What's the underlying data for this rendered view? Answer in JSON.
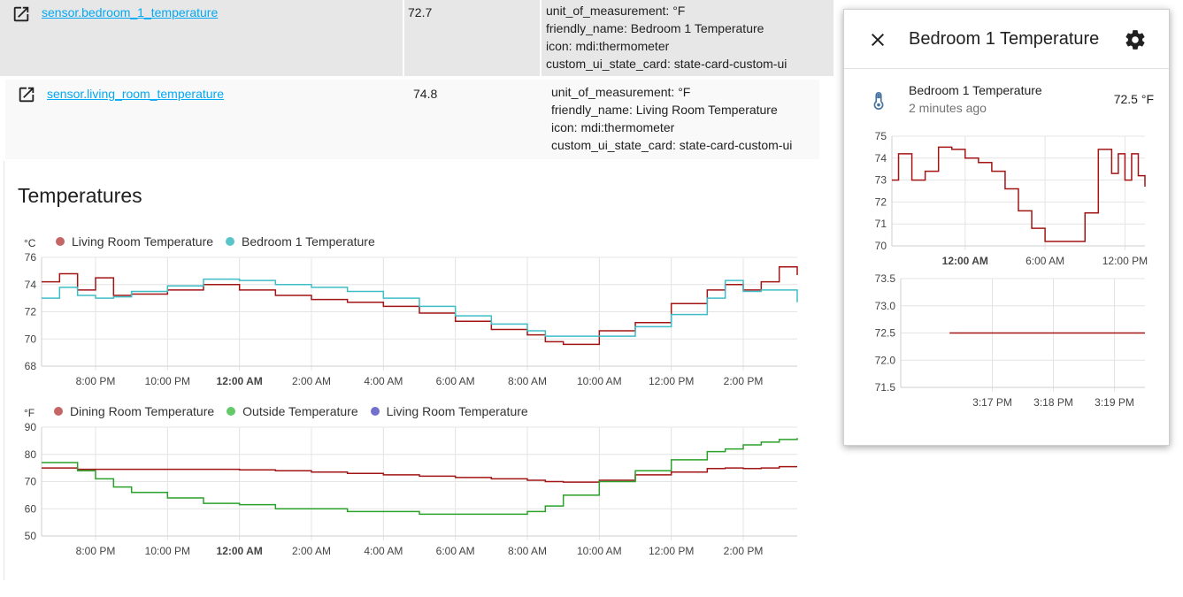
{
  "entities": [
    {
      "entity_id": "sensor.bedroom_1_temperature",
      "state": "72.7",
      "attributes": [
        "unit_of_measurement: °F",
        "friendly_name: Bedroom 1 Temperature",
        "icon: mdi:thermometer",
        "custom_ui_state_card: state-card-custom-ui"
      ]
    },
    {
      "entity_id": "sensor.living_room_temperature",
      "state": "74.8",
      "attributes": [
        "unit_of_measurement: °F",
        "friendly_name: Living Room Temperature",
        "icon: mdi:thermometer",
        "custom_ui_state_card: state-card-custom-ui"
      ]
    }
  ],
  "history_card": {
    "title": "Temperatures",
    "chart1": {
      "unit": "°C",
      "legend": [
        {
          "name": "Living Room Temperature",
          "color": "#c46666"
        },
        {
          "name": "Bedroom 1 Temperature",
          "color": "#5ac5c8"
        }
      ]
    },
    "chart2": {
      "unit": "°F",
      "legend": [
        {
          "name": "Dining Room Temperature",
          "color": "#c46666"
        },
        {
          "name": "Outside Temperature",
          "color": "#65c96a"
        },
        {
          "name": "Living Room Temperature",
          "color": "#7370cc"
        }
      ]
    }
  },
  "dialog": {
    "title": "Bedroom 1 Temperature",
    "entity_name": "Bedroom 1 Temperature",
    "last_changed": "2 minutes ago",
    "state": "72.5 °F"
  },
  "chart_data": [
    {
      "type": "line",
      "ylim": [
        68,
        76
      ],
      "yticks": [
        "76",
        "74",
        "72",
        "70",
        "68"
      ],
      "xticks": [
        "8:00 PM",
        "10:00 PM",
        "12:00 AM",
        "2:00 AM",
        "4:00 AM",
        "6:00 AM",
        "8:00 AM",
        "10:00 AM",
        "12:00 PM",
        "2:00 PM"
      ],
      "x_hours": [
        18.5,
        19,
        19.5,
        20,
        20.5,
        21,
        22,
        23,
        24,
        25,
        26,
        27,
        28,
        29,
        30,
        31,
        32,
        32.5,
        33,
        34,
        35,
        36,
        37,
        37.5,
        38,
        38.5,
        39,
        39.5
      ],
      "series": [
        {
          "name": "Living Room Temperature",
          "color": "#a31515",
          "values": [
            74.2,
            74.8,
            73.6,
            74.5,
            73.2,
            73.3,
            73.6,
            74.0,
            73.6,
            73.2,
            72.9,
            72.7,
            72.4,
            71.9,
            71.3,
            70.7,
            70.3,
            69.8,
            69.6,
            70.6,
            71.2,
            72.6,
            73.6,
            74.0,
            73.6,
            74.2,
            75.3,
            74.7
          ]
        },
        {
          "name": "Bedroom 1 Temperature",
          "color": "#3fbdc6",
          "values": [
            73.0,
            73.8,
            73.2,
            73.0,
            73.1,
            73.5,
            73.9,
            74.4,
            74.3,
            74.0,
            73.8,
            73.5,
            73.0,
            72.4,
            71.7,
            71.1,
            70.6,
            70.2,
            70.2,
            70.2,
            70.9,
            71.8,
            73.0,
            74.3,
            73.5,
            73.6,
            73.6,
            72.7
          ]
        }
      ]
    },
    {
      "type": "line",
      "ylim": [
        50,
        90
      ],
      "yticks": [
        "90",
        "80",
        "70",
        "60",
        "50"
      ],
      "xticks": [
        "8:00 PM",
        "10:00 PM",
        "12:00 AM",
        "2:00 AM",
        "4:00 AM",
        "6:00 AM",
        "8:00 AM",
        "10:00 AM",
        "12:00 PM",
        "2:00 PM"
      ],
      "x_hours": [
        18.5,
        19,
        19.5,
        20,
        20.5,
        21,
        22,
        23,
        24,
        25,
        26,
        27,
        28,
        29,
        30,
        31,
        32,
        32.5,
        33,
        34,
        35,
        36,
        37,
        37.5,
        38,
        38.5,
        39,
        39.5
      ],
      "series": [
        {
          "name": "Dining Room Temperature",
          "color": "#a31515",
          "values": [
            75,
            75,
            74.5,
            74.5,
            74.5,
            74.5,
            74.5,
            74.5,
            74.3,
            74,
            73.5,
            73,
            72.5,
            72,
            71.5,
            71,
            70.5,
            70,
            69.8,
            70.5,
            72.5,
            73.5,
            74.8,
            75,
            74.8,
            75,
            75.5,
            75.5
          ]
        },
        {
          "name": "Outside Temperature",
          "color": "#2aa12a",
          "values": [
            77,
            77,
            74,
            71,
            68,
            66,
            64,
            62,
            61.5,
            60,
            60,
            59,
            59,
            58,
            58,
            58,
            59,
            61,
            65,
            70,
            74,
            78,
            81,
            82,
            83.5,
            84.5,
            85.5,
            86
          ]
        },
        {
          "name": "Living Room Temperature",
          "color": "#7370cc",
          "values": []
        }
      ]
    },
    {
      "type": "line",
      "ylim": [
        70,
        75
      ],
      "yticks": [
        "75",
        "74",
        "73",
        "72",
        "71",
        "70"
      ],
      "xticks": [
        "12:00 AM",
        "6:00 AM",
        "12:00 PM"
      ],
      "x_hours": [
        18.5,
        19,
        20,
        21,
        22,
        23,
        24,
        25,
        26,
        27,
        28,
        29,
        30,
        31,
        32,
        33,
        34,
        35,
        35.5,
        36,
        36.5,
        37,
        37.5
      ],
      "series": [
        {
          "name": "Bedroom 1 Temperature",
          "color": "#a31515",
          "values": [
            73.0,
            74.2,
            73.0,
            73.4,
            74.5,
            74.4,
            74.0,
            73.8,
            73.4,
            72.6,
            71.6,
            70.8,
            70.2,
            70.2,
            70.2,
            71.5,
            74.4,
            73.3,
            74.2,
            73.0,
            74.2,
            73.2,
            72.7
          ]
        }
      ]
    },
    {
      "type": "line",
      "ylim": [
        71.5,
        73.5
      ],
      "yticks": [
        "73.5",
        "73.0",
        "72.5",
        "72.0",
        "71.5"
      ],
      "xticks": [
        "3:17 PM",
        "3:18 PM",
        "3:19 PM"
      ],
      "x_minutes": [
        16.3,
        19.2
      ],
      "series": [
        {
          "name": "Bedroom 1 Temperature",
          "color": "#a31515",
          "values": [
            72.5,
            72.5
          ]
        }
      ]
    }
  ]
}
